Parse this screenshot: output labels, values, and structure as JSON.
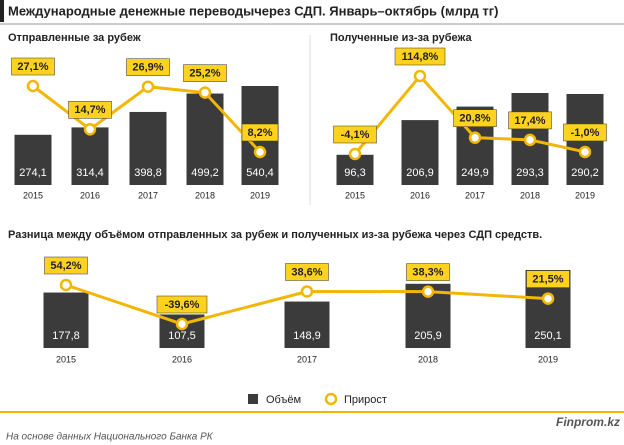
{
  "header": {
    "title": "Международные денежные переводычерез СДП. Январь–октябрь (млрд тг)"
  },
  "chart_data": [
    {
      "type": "bar",
      "subtitle": "Отправленные  за рубеж",
      "categories": [
        "2015",
        "2016",
        "2017",
        "2018",
        "2019"
      ],
      "series": [
        {
          "type": "bar",
          "color": "#3b3b3b",
          "values": [
            274.1,
            314.4,
            398.8,
            499.2,
            540.4
          ],
          "value_labels": [
            "274,1",
            "314,4",
            "398,8",
            "499,2",
            "540,4"
          ]
        },
        {
          "type": "line",
          "color": "#f2b705",
          "values": [
            27.1,
            14.7,
            26.9,
            25.2,
            8.2
          ],
          "value_labels": [
            "27,1%",
            "14,7%",
            "26,9%",
            "25,2%",
            "8,2%"
          ]
        }
      ]
    },
    {
      "type": "bar",
      "subtitle": "Полученные  из-за рубежа",
      "categories": [
        "2015",
        "2016",
        "2017",
        "2018",
        "2019"
      ],
      "series": [
        {
          "type": "bar",
          "color": "#3b3b3b",
          "values": [
            96.3,
            206.9,
            249.9,
            293.3,
            290.2
          ],
          "value_labels": [
            "96,3",
            "206,9",
            "249,9",
            "293,3",
            "290,2"
          ]
        },
        {
          "type": "line",
          "color": "#f2b705",
          "values": [
            -4.1,
            114.8,
            20.8,
            17.4,
            -1.0
          ],
          "value_labels": [
            "-4,1%",
            "114,8%",
            "20,8%",
            "17,4%",
            "-1,0%"
          ]
        }
      ]
    },
    {
      "type": "bar",
      "subtitle": "Разница  между  объёмом  отправленных  за рубеж  и полученных  из-за рубежа через СДП средств.",
      "categories": [
        "2015",
        "2016",
        "2017",
        "2018",
        "2019"
      ],
      "series": [
        {
          "type": "bar",
          "name": "Объём",
          "color": "#3b3b3b",
          "values": [
            177.8,
            107.5,
            148.9,
            205.9,
            250.1
          ],
          "value_labels": [
            "177,8",
            "107,5",
            "148,9",
            "205,9",
            "250,1"
          ]
        },
        {
          "type": "line",
          "name": "Прирост",
          "color": "#f2b705",
          "values": [
            54.2,
            -39.6,
            38.6,
            38.3,
            21.5
          ],
          "value_labels": [
            "54,2%",
            "-39,6%",
            "38,6%",
            "38,3%",
            "21,5%"
          ]
        }
      ]
    }
  ],
  "footer": {
    "brand": "Finprom.kz",
    "source": "На основе данных Национального  Банка РК"
  }
}
